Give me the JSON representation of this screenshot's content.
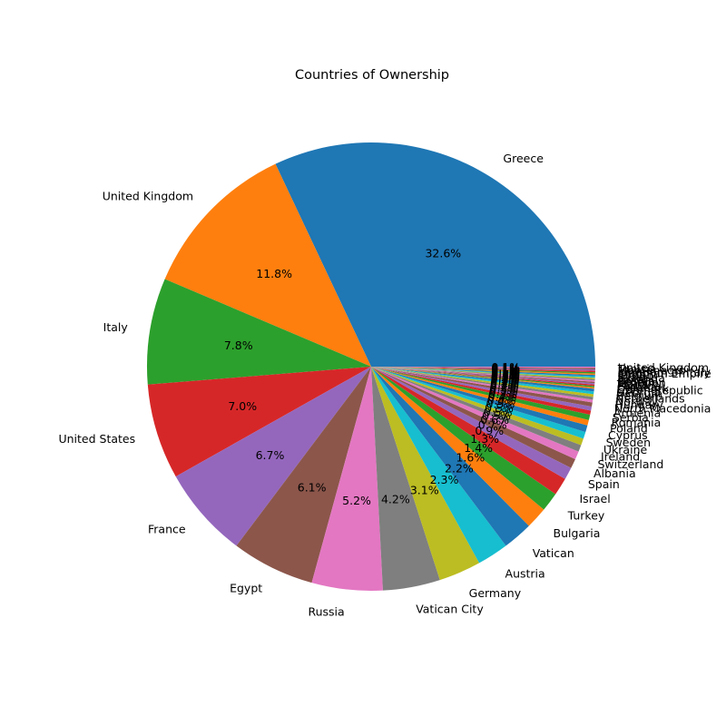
{
  "chart_data": {
    "type": "pie",
    "title": "Countries of Ownership",
    "start_angle_deg": 0,
    "direction": "counterclockwise",
    "autopct_format": "1 decimal place with %",
    "slices": [
      {
        "label": "Greece",
        "value": 32.6,
        "color": "#1f77b4"
      },
      {
        "label": "United Kingdom",
        "value": 11.8,
        "color": "#ff7f0e"
      },
      {
        "label": "Italy",
        "value": 7.8,
        "color": "#2ca02c"
      },
      {
        "label": "United States",
        "value": 7.0,
        "color": "#d62728"
      },
      {
        "label": "France",
        "value": 6.7,
        "color": "#9467bd"
      },
      {
        "label": "Egypt",
        "value": 6.1,
        "color": "#8c564b"
      },
      {
        "label": "Russia",
        "value": 5.2,
        "color": "#e377c2"
      },
      {
        "label": "Vatican City",
        "value": 4.2,
        "color": "#7f7f7f"
      },
      {
        "label": "Germany",
        "value": 3.1,
        "color": "#bcbd22"
      },
      {
        "label": "Austria",
        "value": 2.3,
        "color": "#17becf"
      },
      {
        "label": "Vatican",
        "value": 2.2,
        "color": "#1f77b4"
      },
      {
        "label": "Bulgaria",
        "value": 1.6,
        "color": "#ff7f0e"
      },
      {
        "label": "Turkey",
        "value": 1.4,
        "color": "#2ca02c"
      },
      {
        "label": "Israel",
        "value": 1.3,
        "color": "#d62728"
      },
      {
        "label": "Spain",
        "value": 0.9,
        "color": "#9467bd"
      },
      {
        "label": "Albania",
        "value": 0.7,
        "color": "#8c564b"
      },
      {
        "label": "Switzerland",
        "value": 0.6,
        "color": "#e377c2"
      },
      {
        "label": "Ireland",
        "value": 0.5,
        "color": "#7f7f7f"
      },
      {
        "label": "Ukraine",
        "value": 0.5,
        "color": "#bcbd22"
      },
      {
        "label": "Sweden",
        "value": 0.5,
        "color": "#17becf"
      },
      {
        "label": "Cyprus",
        "value": 0.5,
        "color": "#1f77b4"
      },
      {
        "label": "Poland",
        "value": 0.4,
        "color": "#ff7f0e"
      },
      {
        "label": "Romania",
        "value": 0.4,
        "color": "#2ca02c"
      },
      {
        "label": "Serbia",
        "value": 0.3,
        "color": "#d62728"
      },
      {
        "label": "Armenia",
        "value": 0.3,
        "color": "#9467bd"
      },
      {
        "label": "North Macedonia",
        "value": 0.3,
        "color": "#8c564b"
      },
      {
        "label": "Hungary",
        "value": 0.2,
        "color": "#e377c2"
      },
      {
        "label": "Norway",
        "value": 0.2,
        "color": "#7f7f7f"
      },
      {
        "label": "Netherlands",
        "value": 0.2,
        "color": "#bcbd22"
      },
      {
        "label": "Belgium",
        "value": 0.2,
        "color": "#17becf"
      },
      {
        "label": "Georgia",
        "value": 0.2,
        "color": "#1f77b4"
      },
      {
        "label": "Czech Republic",
        "value": 0.1,
        "color": "#ff7f0e"
      },
      {
        "label": "Denmark",
        "value": 0.1,
        "color": "#2ca02c"
      },
      {
        "label": "Croatia",
        "value": 0.1,
        "color": "#d62728"
      },
      {
        "label": "Portugal",
        "value": 0.1,
        "color": "#9467bd"
      },
      {
        "label": "Malta",
        "value": 0.1,
        "color": "#8c564b"
      },
      {
        "label": "Lebanon",
        "value": 0.1,
        "color": "#e377c2"
      },
      {
        "label": "Bosnia",
        "value": 0.1,
        "color": "#7f7f7f"
      },
      {
        "label": "Finland",
        "value": 0.1,
        "color": "#bcbd22"
      },
      {
        "label": "Slovakia",
        "value": 0.1,
        "color": "#17becf"
      },
      {
        "label": "Syria",
        "value": 0.1,
        "color": "#1f77b4"
      },
      {
        "label": "Jordan",
        "value": 0.1,
        "color": "#ff7f0e"
      },
      {
        "label": "Ottoman Empire",
        "value": 0.1,
        "color": "#2ca02c"
      },
      {
        "label": "Kingdom of Italy",
        "value": 0.1,
        "color": "#d62728"
      },
      {
        "label": "Montenegro",
        "value": 0.1,
        "color": "#9467bd"
      },
      {
        "label": "Tunisia",
        "value": 0.1,
        "color": "#8c564b"
      },
      {
        "label": "United Kingdom ",
        "value": 0.1,
        "color": "#e377c2"
      }
    ]
  }
}
